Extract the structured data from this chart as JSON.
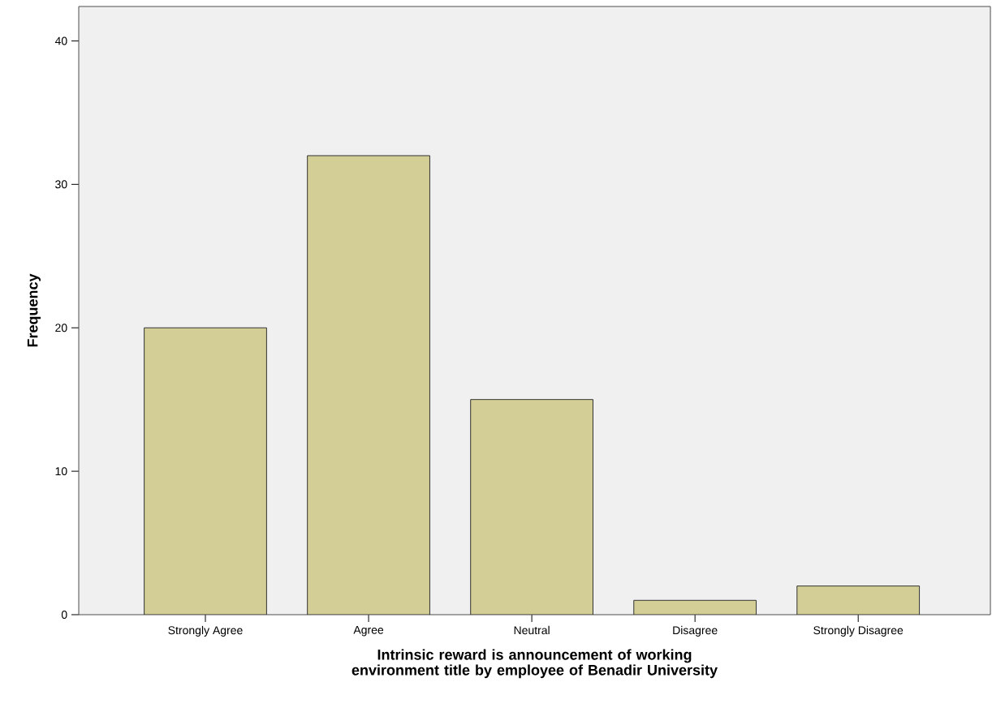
{
  "chart_data": {
    "type": "bar",
    "xlabel": "Intrinsic reward is announcement of working environment title by employee of Benadir University",
    "ylabel": "Frequency",
    "categories": [
      "Strongly Agree",
      "Agree",
      "Neutral",
      "Disagree",
      "Strongly Disagree"
    ],
    "values": [
      20,
      32,
      15,
      1,
      2
    ],
    "color": "#d3cd96",
    "ylim": [
      0,
      42.4
    ],
    "yticks": [
      0,
      10,
      20,
      30,
      40
    ],
    "grid": false
  }
}
